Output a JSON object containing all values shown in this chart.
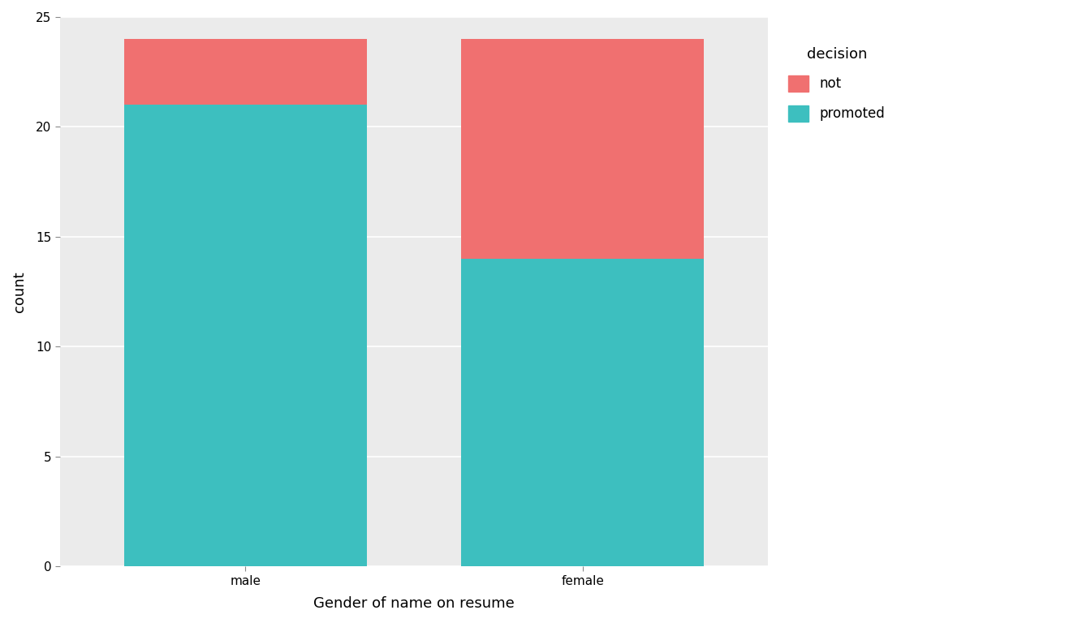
{
  "categories": [
    "male",
    "female"
  ],
  "promoted": [
    21,
    14
  ],
  "not_promoted": [
    3,
    10
  ],
  "color_promoted": "#3DBFBF",
  "color_not": "#F07070",
  "plot_bg_color": "#EBEBEB",
  "figure_bg_color": "#FFFFFF",
  "xlabel": "Gender of name on resume",
  "ylabel": "count",
  "legend_title": "decision",
  "legend_labels": [
    "not",
    "promoted"
  ],
  "ylim": [
    0,
    25
  ],
  "yticks": [
    0,
    5,
    10,
    15,
    20,
    25
  ],
  "bar_width": 0.72,
  "axis_label_fontsize": 13,
  "tick_fontsize": 11,
  "legend_fontsize": 12,
  "legend_title_fontsize": 13
}
